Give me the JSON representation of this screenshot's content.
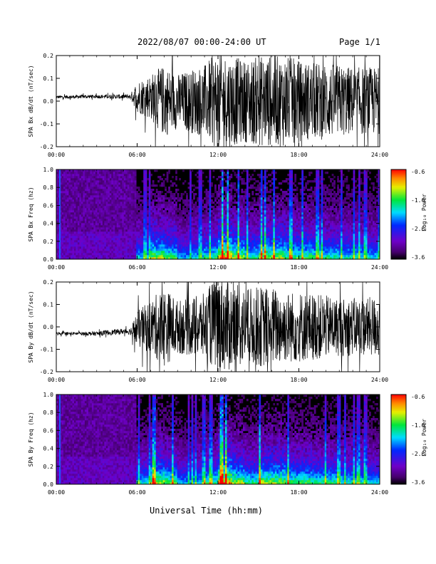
{
  "header": {
    "title": "2022/08/07  00:00-24:00 UT",
    "page": "Page 1/1"
  },
  "footer": {
    "xlabel": "Universal Time (hh:mm)"
  },
  "chart_data": [
    {
      "type": "line",
      "ylabel": "SPA Bx dB/dt (nT/sec)",
      "ylim": [
        -0.2,
        0.2
      ],
      "yticks": [
        "0.2",
        "0.1",
        "0.0",
        "-0.1",
        "-0.2"
      ],
      "xlim": [
        0,
        24
      ],
      "xticks": [
        "00:00",
        "06:00",
        "12:00",
        "18:00",
        "24:00"
      ],
      "series": [
        {
          "values": [
            [
              0,
              0.018
            ],
            [
              1,
              0.018
            ],
            [
              2,
              0.02
            ],
            [
              3,
              0.02
            ],
            [
              4,
              0.02
            ],
            [
              5,
              0.02
            ],
            [
              5.5,
              0.02
            ],
            [
              6,
              0.02
            ],
            [
              7,
              0.02
            ],
            [
              8,
              0.0
            ],
            [
              9,
              0.0
            ],
            [
              10,
              0.0
            ],
            [
              11,
              0.0
            ],
            [
              12,
              0.0
            ],
            [
              13,
              0.0
            ],
            [
              14,
              0.0
            ],
            [
              15,
              0.0
            ],
            [
              16,
              0.0
            ],
            [
              17,
              0.0
            ],
            [
              18,
              0.0
            ],
            [
              19,
              0.0
            ],
            [
              20,
              0.0
            ],
            [
              21,
              0.0
            ],
            [
              22,
              0.0
            ],
            [
              23,
              0.0
            ],
            [
              24,
              0.0
            ]
          ],
          "amplitude": [
            [
              0,
              0.007
            ],
            [
              1,
              0.007
            ],
            [
              2,
              0.008
            ],
            [
              3,
              0.008
            ],
            [
              4,
              0.009
            ],
            [
              5,
              0.01
            ],
            [
              5.5,
              0.01
            ],
            [
              6,
              0.07
            ],
            [
              7,
              0.1
            ],
            [
              8,
              0.16
            ],
            [
              9,
              0.12
            ],
            [
              10,
              0.14
            ],
            [
              11,
              0.16
            ],
            [
              12,
              0.22
            ],
            [
              13,
              0.2
            ],
            [
              14,
              0.18
            ],
            [
              15,
              0.2
            ],
            [
              16,
              0.2
            ],
            [
              17,
              0.2
            ],
            [
              18,
              0.18
            ],
            [
              19,
              0.17
            ],
            [
              20,
              0.17
            ],
            [
              21,
              0.16
            ],
            [
              22,
              0.15
            ],
            [
              23,
              0.15
            ],
            [
              24,
              0.15
            ]
          ]
        }
      ]
    },
    {
      "type": "heatmap",
      "ylabel": "SPA Bx Freq (hz)",
      "ylim": [
        0.0,
        1.0
      ],
      "yticks": [
        "1.0",
        "0.8",
        "0.6",
        "0.4",
        "0.2",
        "0.0"
      ],
      "xlim": [
        0,
        24
      ],
      "xticks": [
        "00:00",
        "06:00",
        "12:00",
        "18:00",
        "24:00"
      ],
      "colorbar": {
        "label": "Log₁₀ Power",
        "ticks": [
          "-0.6",
          "-1.6",
          "-2.6",
          "-3.6"
        ],
        "range": [
          -3.6,
          -0.6
        ]
      },
      "activity": [
        0.12,
        0.1,
        0.1,
        0.1,
        0.1,
        0.12,
        0.6,
        0.85,
        0.75,
        0.55,
        0.6,
        0.7,
        1.0,
        0.85,
        0.7,
        0.85,
        0.85,
        0.75,
        0.75,
        0.7,
        0.7,
        0.65,
        0.65,
        0.6
      ]
    },
    {
      "type": "line",
      "ylabel": "SPA By dB/dt (nT/sec)",
      "ylim": [
        -0.2,
        0.2
      ],
      "yticks": [
        "0.2",
        "0.1",
        "0.0",
        "-0.1",
        "-0.2"
      ],
      "xlim": [
        0,
        24
      ],
      "xticks": [
        "00:00",
        "06:00",
        "12:00",
        "18:00",
        "24:00"
      ],
      "series": [
        {
          "values": [
            [
              0,
              -0.03
            ],
            [
              1,
              -0.03
            ],
            [
              2,
              -0.03
            ],
            [
              3,
              -0.03
            ],
            [
              4,
              -0.025
            ],
            [
              5,
              -0.02
            ],
            [
              5.5,
              -0.02
            ],
            [
              6,
              -0.01
            ],
            [
              7,
              0.0
            ],
            [
              8,
              0.0
            ],
            [
              9,
              0.0
            ],
            [
              10,
              0.0
            ],
            [
              11,
              0.0
            ],
            [
              12,
              0.02
            ],
            [
              13,
              0.0
            ],
            [
              14,
              0.0
            ],
            [
              15,
              0.0
            ],
            [
              16,
              0.0
            ],
            [
              17,
              0.0
            ],
            [
              18,
              0.0
            ],
            [
              19,
              0.0
            ],
            [
              20,
              0.0
            ],
            [
              21,
              0.0
            ],
            [
              22,
              0.0
            ],
            [
              23,
              0.0
            ],
            [
              24,
              0.0
            ]
          ],
          "amplitude": [
            [
              0,
              0.007
            ],
            [
              1,
              0.007
            ],
            [
              2,
              0.008
            ],
            [
              3,
              0.01
            ],
            [
              4,
              0.012
            ],
            [
              5,
              0.012
            ],
            [
              5.5,
              0.015
            ],
            [
              6,
              0.08
            ],
            [
              7,
              0.12
            ],
            [
              8,
              0.18
            ],
            [
              9,
              0.12
            ],
            [
              10,
              0.13
            ],
            [
              11,
              0.15
            ],
            [
              12,
              0.22
            ],
            [
              13,
              0.2
            ],
            [
              14,
              0.17
            ],
            [
              15,
              0.18
            ],
            [
              16,
              0.18
            ],
            [
              17,
              0.16
            ],
            [
              18,
              0.16
            ],
            [
              19,
              0.15
            ],
            [
              20,
              0.14
            ],
            [
              21,
              0.13
            ],
            [
              22,
              0.13
            ],
            [
              23,
              0.13
            ],
            [
              24,
              0.14
            ]
          ]
        }
      ]
    },
    {
      "type": "heatmap",
      "ylabel": "SPA By Freq (hz)",
      "ylim": [
        0.0,
        1.0
      ],
      "yticks": [
        "1.0",
        "0.8",
        "0.6",
        "0.4",
        "0.2",
        "0.0"
      ],
      "xlim": [
        0,
        24
      ],
      "xticks": [
        "00:00",
        "06:00",
        "12:00",
        "18:00",
        "24:00"
      ],
      "colorbar": {
        "label": "Log₁₀ Power",
        "ticks": [
          "-0.6",
          "-1.6",
          "-2.6",
          "-3.6"
        ],
        "range": [
          -3.6,
          -0.6
        ]
      },
      "activity": [
        0.12,
        0.1,
        0.1,
        0.1,
        0.1,
        0.12,
        0.6,
        0.85,
        0.75,
        0.55,
        0.6,
        0.7,
        1.0,
        0.85,
        0.7,
        0.85,
        0.85,
        0.75,
        0.75,
        0.7,
        0.7,
        0.65,
        0.65,
        0.6
      ]
    }
  ]
}
